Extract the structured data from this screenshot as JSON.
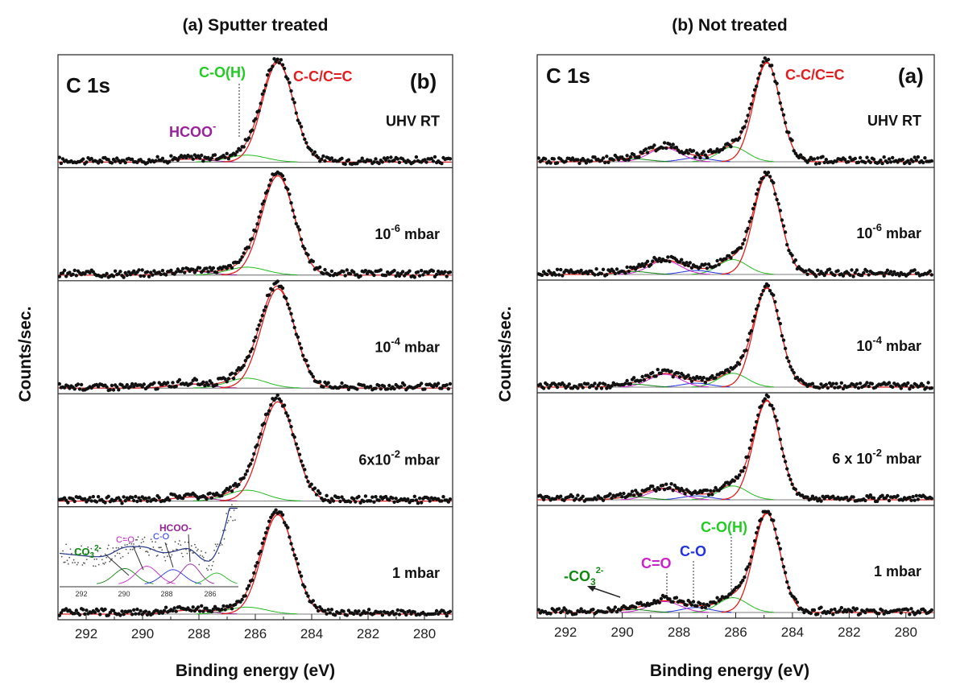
{
  "chart_data": [
    {
      "type": "line",
      "panel_title": "(a) Sputter treated",
      "xlabel": "Binding energy (eV)",
      "ylabel": "Counts/sec.",
      "xlim": [
        293,
        279
      ],
      "x_ticks": [
        292,
        290,
        288,
        286,
        284,
        282,
        280
      ],
      "x_reversed": true,
      "core_level": "C 1s",
      "panel_tag": "(b)",
      "peak_labels": {
        "cc": "C-C/C=C",
        "coh": "C-O(H)",
        "hcoo": "HCOO",
        "hcoo_sup": "-"
      },
      "inset": {
        "labels": {
          "co3": "CO",
          "co3_sub": "3",
          "co3_sup": "2-",
          "ceqo": "C=O",
          "co": "C-O",
          "hcoo": "HCOO-"
        },
        "x_ticks": [
          292,
          290,
          288,
          286
        ]
      },
      "spectra": [
        {
          "condition": "UHV RT",
          "components": [
            {
              "name": "C-C/C=C",
              "center": 285.2,
              "fwhm": 1.3,
              "height": 1.0,
              "color": "#e02020"
            },
            {
              "name": "C-O(H)",
              "center": 286.3,
              "fwhm": 1.6,
              "height": 0.07,
              "color": "#22bb22"
            },
            {
              "name": "HCOO-",
              "center": 288.3,
              "fwhm": 1.6,
              "height": 0.03,
              "color": "#992299"
            }
          ]
        },
        {
          "condition_base": "10",
          "condition_exp": "-6",
          "condition_unit": " mbar",
          "components": [
            {
              "name": "C-C/C=C",
              "center": 285.2,
              "fwhm": 1.35,
              "height": 1.0,
              "color": "#e02020"
            },
            {
              "name": "C-O(H)",
              "center": 286.3,
              "fwhm": 1.6,
              "height": 0.08,
              "color": "#22bb22"
            },
            {
              "name": "HCOO-",
              "center": 288.3,
              "fwhm": 1.6,
              "height": 0.04,
              "color": "#992299"
            }
          ]
        },
        {
          "condition_base": "10",
          "condition_exp": "-4",
          "condition_unit": " mbar",
          "components": [
            {
              "name": "C-C/C=C",
              "center": 285.2,
              "fwhm": 1.4,
              "height": 1.0,
              "color": "#e02020"
            },
            {
              "name": "C-O(H)",
              "center": 286.3,
              "fwhm": 1.6,
              "height": 0.1,
              "color": "#22bb22"
            },
            {
              "name": "HCOO-",
              "center": 288.3,
              "fwhm": 1.6,
              "height": 0.04,
              "color": "#992299"
            }
          ]
        },
        {
          "condition_base": "6x10",
          "condition_exp": "-2",
          "condition_unit": " mbar",
          "components": [
            {
              "name": "C-C/C=C",
              "center": 285.2,
              "fwhm": 1.4,
              "height": 1.0,
              "color": "#e02020"
            },
            {
              "name": "C-O(H)",
              "center": 286.3,
              "fwhm": 1.6,
              "height": 0.11,
              "color": "#22bb22"
            },
            {
              "name": "HCOO-",
              "center": 288.3,
              "fwhm": 1.6,
              "height": 0.04,
              "color": "#992299"
            }
          ]
        },
        {
          "condition": "1 mbar",
          "components": [
            {
              "name": "C-C/C=C",
              "center": 285.2,
              "fwhm": 1.35,
              "height": 1.0,
              "color": "#e02020"
            },
            {
              "name": "C-O(H)",
              "center": 286.3,
              "fwhm": 1.6,
              "height": 0.07,
              "color": "#22bb22"
            },
            {
              "name": "HCOO-",
              "center": 288.3,
              "fwhm": 1.6,
              "height": 0.04,
              "color": "#992299"
            }
          ]
        }
      ]
    },
    {
      "type": "line",
      "panel_title": "(b) Not treated",
      "xlabel": "Binding energy (eV)",
      "ylabel": "Counts/sec.",
      "xlim": [
        293,
        279
      ],
      "x_ticks": [
        292,
        290,
        288,
        286,
        284,
        282,
        280
      ],
      "x_reversed": true,
      "core_level": "C 1s",
      "panel_tag": "(a)",
      "peak_labels": {
        "cc": "C-C/C=C",
        "coh": "C-O(H)",
        "ceqo": "C=O",
        "co": "C-O",
        "co3_prefix": "-CO",
        "co3_sub": "3",
        "co3_sup": "2-"
      },
      "spectra": [
        {
          "condition": "UHV RT",
          "components": [
            {
              "name": "C-C/C=C",
              "center": 284.9,
              "fwhm": 1.1,
              "height": 1.0,
              "color": "#e02020"
            },
            {
              "name": "C-O(H)",
              "center": 286.1,
              "fwhm": 1.2,
              "height": 0.15,
              "color": "#22bb22"
            },
            {
              "name": "C-O",
              "center": 287.4,
              "fwhm": 1.2,
              "height": 0.04,
              "color": "#2233dd"
            },
            {
              "name": "C=O",
              "center": 288.5,
              "fwhm": 1.3,
              "height": 0.14,
              "color": "#cc22cc"
            },
            {
              "name": "CO3 2-",
              "center": 289.6,
              "fwhm": 1.3,
              "height": 0.03,
              "color": "#118811"
            }
          ]
        },
        {
          "condition_base": "10",
          "condition_exp": "-6",
          "condition_unit": " mbar",
          "components": [
            {
              "name": "C-C/C=C",
              "center": 284.9,
              "fwhm": 1.1,
              "height": 1.0,
              "color": "#e02020"
            },
            {
              "name": "C-O(H)",
              "center": 286.1,
              "fwhm": 1.2,
              "height": 0.15,
              "color": "#22bb22"
            },
            {
              "name": "C-O",
              "center": 287.4,
              "fwhm": 1.2,
              "height": 0.04,
              "color": "#2233dd"
            },
            {
              "name": "C=O",
              "center": 288.5,
              "fwhm": 1.3,
              "height": 0.14,
              "color": "#cc22cc"
            },
            {
              "name": "CO3 2-",
              "center": 289.6,
              "fwhm": 1.3,
              "height": 0.03,
              "color": "#118811"
            }
          ]
        },
        {
          "condition_base": "10",
          "condition_exp": "-4",
          "condition_unit": " mbar",
          "components": [
            {
              "name": "C-C/C=C",
              "center": 284.9,
              "fwhm": 1.1,
              "height": 1.0,
              "color": "#e02020"
            },
            {
              "name": "C-O(H)",
              "center": 286.1,
              "fwhm": 1.2,
              "height": 0.14,
              "color": "#22bb22"
            },
            {
              "name": "C-O",
              "center": 287.4,
              "fwhm": 1.2,
              "height": 0.04,
              "color": "#2233dd"
            },
            {
              "name": "C=O",
              "center": 288.5,
              "fwhm": 1.3,
              "height": 0.13,
              "color": "#cc22cc"
            },
            {
              "name": "CO3 2-",
              "center": 289.6,
              "fwhm": 1.3,
              "height": 0.03,
              "color": "#118811"
            }
          ]
        },
        {
          "condition_base": "6 x 10",
          "condition_exp": "-2",
          "condition_unit": " mbar",
          "components": [
            {
              "name": "C-C/C=C",
              "center": 284.9,
              "fwhm": 1.1,
              "height": 1.0,
              "color": "#e02020"
            },
            {
              "name": "C-O(H)",
              "center": 286.1,
              "fwhm": 1.2,
              "height": 0.14,
              "color": "#22bb22"
            },
            {
              "name": "C-O",
              "center": 287.4,
              "fwhm": 1.2,
              "height": 0.04,
              "color": "#2233dd"
            },
            {
              "name": "C=O",
              "center": 288.5,
              "fwhm": 1.3,
              "height": 0.11,
              "color": "#cc22cc"
            },
            {
              "name": "CO3 2-",
              "center": 289.6,
              "fwhm": 1.3,
              "height": 0.03,
              "color": "#118811"
            }
          ]
        },
        {
          "condition": "1 mbar",
          "components": [
            {
              "name": "C-C/C=C",
              "center": 284.9,
              "fwhm": 1.1,
              "height": 1.0,
              "color": "#e02020"
            },
            {
              "name": "C-O(H)",
              "center": 286.1,
              "fwhm": 1.2,
              "height": 0.15,
              "color": "#22bb22"
            },
            {
              "name": "C-O",
              "center": 287.4,
              "fwhm": 1.2,
              "height": 0.05,
              "color": "#2233dd"
            },
            {
              "name": "C=O",
              "center": 288.5,
              "fwhm": 1.3,
              "height": 0.11,
              "color": "#cc22cc"
            },
            {
              "name": "CO3 2-",
              "center": 289.6,
              "fwhm": 1.3,
              "height": 0.03,
              "color": "#118811"
            }
          ]
        }
      ]
    }
  ],
  "colors": {
    "envelope": "#e02020",
    "data_points": "#111111",
    "baseline": "#555555",
    "frame": "#222222",
    "coh": "#22bb22",
    "hcoo": "#992299",
    "ceqo": "#cc22cc",
    "co": "#2233dd",
    "co3": "#118811",
    "inset_envelope": "#223388"
  }
}
